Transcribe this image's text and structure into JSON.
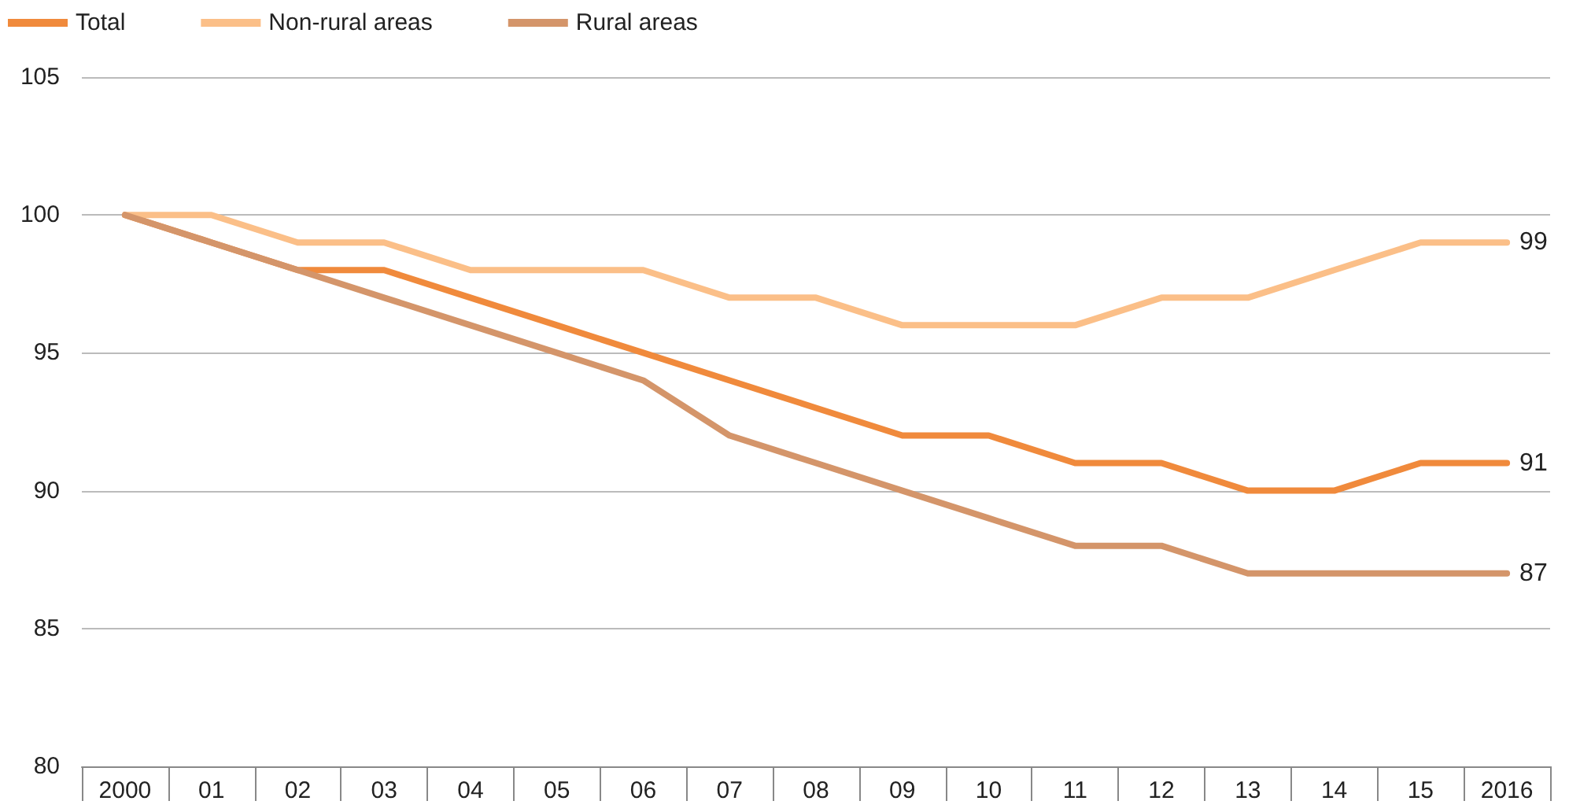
{
  "chart_data": {
    "type": "line",
    "categories": [
      "2000",
      "01",
      "02",
      "03",
      "04",
      "05",
      "06",
      "07",
      "08",
      "09",
      "10",
      "11",
      "12",
      "13",
      "14",
      "15",
      "2016"
    ],
    "series": [
      {
        "name": "Total",
        "color": "#f08a3c",
        "values": [
          100,
          99,
          98,
          98,
          97,
          96,
          95,
          94,
          93,
          92,
          92,
          91,
          91,
          90,
          90,
          91,
          91
        ],
        "value_labels": [
          null,
          null,
          null,
          null,
          null,
          null,
          null,
          null,
          null,
          null,
          null,
          null,
          null,
          null,
          null,
          null,
          "91"
        ]
      },
      {
        "name": "Non-rural areas",
        "color": "#fbbf88",
        "values": [
          100,
          100,
          99,
          99,
          98,
          98,
          98,
          97,
          97,
          96,
          96,
          96,
          97,
          97,
          98,
          99,
          99
        ],
        "value_labels": [
          null,
          null,
          null,
          null,
          null,
          null,
          null,
          null,
          null,
          null,
          null,
          null,
          null,
          null,
          null,
          null,
          "99"
        ]
      },
      {
        "name": "Rural areas",
        "color": "#d4956a",
        "values": [
          100,
          99,
          98,
          97,
          96,
          95,
          94,
          92,
          91,
          90,
          89,
          88,
          88,
          87,
          87,
          87,
          87
        ],
        "value_labels": [
          null,
          null,
          null,
          null,
          null,
          null,
          null,
          null,
          null,
          null,
          null,
          null,
          null,
          null,
          null,
          null,
          "87"
        ]
      }
    ],
    "ylim": [
      80,
      105
    ],
    "yticks": [
      80,
      85,
      90,
      95,
      100,
      105
    ],
    "grid": "y",
    "legend": "top left",
    "marker": "none",
    "line_style": "solid"
  }
}
